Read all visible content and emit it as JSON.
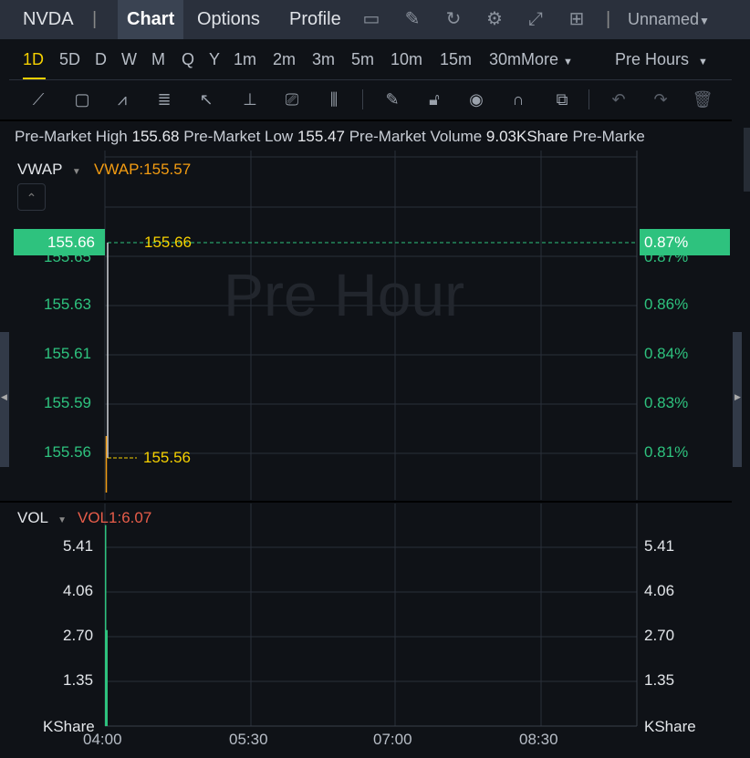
{
  "topbar": {
    "symbol": "NVDA",
    "tabs": [
      {
        "label": "Chart",
        "active": true
      },
      {
        "label": "Options"
      },
      {
        "label": "Profile"
      }
    ],
    "icons": [
      "chart-screen-icon",
      "draw-icon",
      "refresh-icon",
      "settings-icon",
      "fullscreen-icon",
      "layout-grid-icon"
    ],
    "layout_name": "Unnamed"
  },
  "timeframes": {
    "items": [
      "1D",
      "5D",
      "D",
      "W",
      "M",
      "Q",
      "Y",
      "1m",
      "2m",
      "3m",
      "5m",
      "10m",
      "15m",
      "30m"
    ],
    "active": "1D",
    "more": "More",
    "session": "Pre Hours"
  },
  "tools": [
    "trend-line-icon",
    "rectangle-icon",
    "pattern-icon",
    "fib-icon",
    "arrow-icon",
    "measure-icon",
    "text-note-icon",
    "candle-indicator-icon",
    "pencil-icon",
    "lock-icon",
    "eye-icon",
    "magnet-icon",
    "layers-icon",
    "undo-icon",
    "redo-icon",
    "trash-icon"
  ],
  "info": {
    "high_label": "Pre-Market High",
    "high": "155.68",
    "low_label": "Pre-Market Low",
    "low": "155.47",
    "vol_label": "Pre-Market Volume",
    "vol": "9.03KShare",
    "more": "Pre-Marke"
  },
  "price_pane": {
    "indicator": "VWAP",
    "indicator_value": "VWAP:155.57",
    "watermark": "Pre Hour",
    "current_price": "155.66",
    "current_pct": "0.87%",
    "hidden_tick": "155.65",
    "hidden_pct": "0.87%",
    "ticks": [
      {
        "price": "155.63",
        "pct": "0.86%"
      },
      {
        "price": "155.61",
        "pct": "0.84%"
      },
      {
        "price": "155.59",
        "pct": "0.83%"
      },
      {
        "price": "155.56",
        "pct": "0.81%"
      }
    ],
    "high_marker": "155.66",
    "low_marker": "155.56"
  },
  "volume_pane": {
    "indicator": "VOL",
    "indicator_value": "VOL1:6.07",
    "ticks": [
      "5.41",
      "4.06",
      "2.70",
      "1.35"
    ],
    "unit": "KShare"
  },
  "time_axis": [
    "04:00",
    "05:30",
    "07:00",
    "08:30"
  ],
  "chart_data": {
    "type": "line",
    "x": [
      "04:00",
      "04:00"
    ],
    "price": [
      155.66,
      155.56
    ],
    "volume": [
      6.07,
      2.9
    ],
    "colors": {
      "up": "#2ec27e",
      "vwap": "#f39c12",
      "marker": "#f5d000"
    }
  }
}
